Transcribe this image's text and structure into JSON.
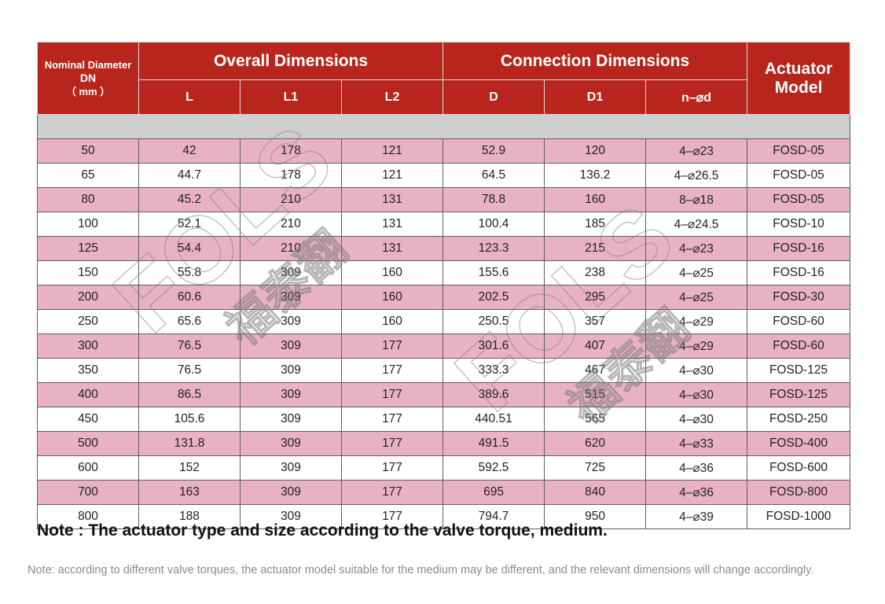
{
  "header": {
    "nominal_line1": "Nominal Diameter",
    "nominal_line2": "DN",
    "nominal_line3": "（ mm ）",
    "overall_group": "Overall Dimensions",
    "connection_group": "Connection Dimensions",
    "actuator_line1": "Actuator",
    "actuator_line2": "Model",
    "sub_columns": [
      "L",
      "L1",
      "L2",
      "D",
      "D1",
      "n–⌀d"
    ]
  },
  "rows": [
    [
      "50",
      "42",
      "178",
      "121",
      "52.9",
      "120",
      "4–⌀23",
      "FOSD-05"
    ],
    [
      "65",
      "44.7",
      "178",
      "121",
      "64.5",
      "136.2",
      "4–⌀26.5",
      "FOSD-05"
    ],
    [
      "80",
      "45.2",
      "210",
      "131",
      "78.8",
      "160",
      "8–⌀18",
      "FOSD-05"
    ],
    [
      "100",
      "52.1",
      "210",
      "131",
      "100.4",
      "185",
      "4–⌀24.5",
      "FOSD-10"
    ],
    [
      "125",
      "54.4",
      "210",
      "131",
      "123.3",
      "215",
      "4–⌀23",
      "FOSD-16"
    ],
    [
      "150",
      "55.8",
      "309",
      "160",
      "155.6",
      "238",
      "4–⌀25",
      "FOSD-16"
    ],
    [
      "200",
      "60.6",
      "309",
      "160",
      "202.5",
      "295",
      "4–⌀25",
      "FOSD-30"
    ],
    [
      "250",
      "65.6",
      "309",
      "160",
      "250.5",
      "357",
      "4–⌀29",
      "FOSD-60"
    ],
    [
      "300",
      "76.5",
      "309",
      "177",
      "301.6",
      "407",
      "4–⌀29",
      "FOSD-60"
    ],
    [
      "350",
      "76.5",
      "309",
      "177",
      "333.3",
      "467",
      "4–⌀30",
      "FOSD-125"
    ],
    [
      "400",
      "86.5",
      "309",
      "177",
      "389.6",
      "515",
      "4–⌀30",
      "FOSD-125"
    ],
    [
      "450",
      "105.6",
      "309",
      "177",
      "440.51",
      "565",
      "4–⌀30",
      "FOSD-250"
    ],
    [
      "500",
      "131.8",
      "309",
      "177",
      "491.5",
      "620",
      "4–⌀33",
      "FOSD-400"
    ],
    [
      "600",
      "152",
      "309",
      "177",
      "592.5",
      "725",
      "4–⌀36",
      "FOSD-600"
    ],
    [
      "700",
      "163",
      "309",
      "177",
      "695",
      "840",
      "4–⌀36",
      "FOSD-800"
    ],
    [
      "800",
      "188",
      "309",
      "177",
      "794.7",
      "950",
      "4–⌀39",
      "FOSD-1000"
    ]
  ],
  "note_main": "Note : The actuator type and size according to the valve torque, medium.",
  "note_small": "Note: according to different valve torques, the actuator model suitable for the medium may be different, and the relevant dimensions will change accordingly.",
  "colors": {
    "header_red": "#b8251c",
    "row_pink": "#e9b1c6",
    "row_white": "#ffffff",
    "separator_gray": "#cfcfcf"
  },
  "watermark": {
    "text_latin": "FOLS",
    "text_cjk": "福泰翻"
  }
}
